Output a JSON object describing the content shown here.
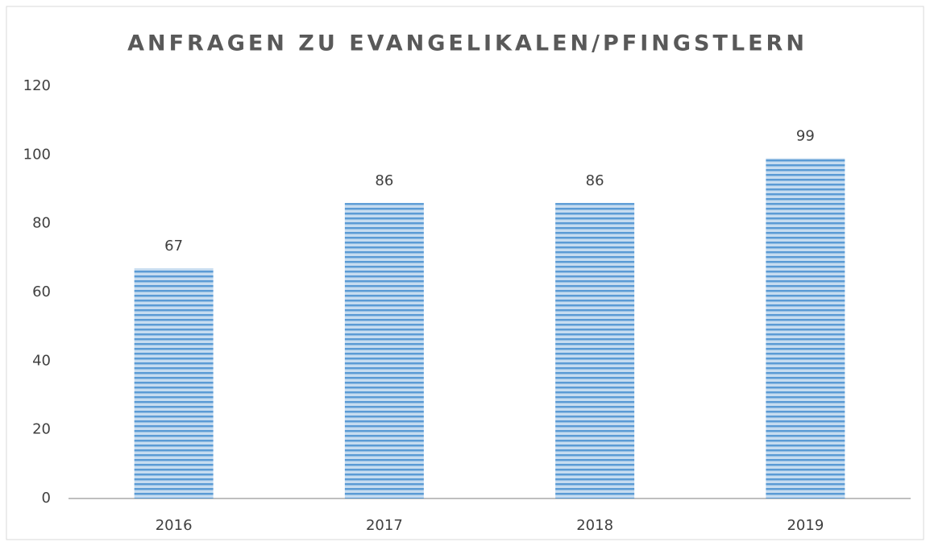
{
  "chart_data": {
    "type": "bar",
    "title": "ANFRAGEN ZU EVANGELIKALEN/PFINGSTLERN",
    "categories": [
      "2016",
      "2017",
      "2018",
      "2019"
    ],
    "values": [
      67,
      86,
      86,
      99
    ],
    "color": "#5b9bd5",
    "ylim": [
      0,
      120
    ],
    "yticks": [
      0,
      20,
      40,
      60,
      80,
      100,
      120
    ],
    "grid": false,
    "data_labels": true
  }
}
